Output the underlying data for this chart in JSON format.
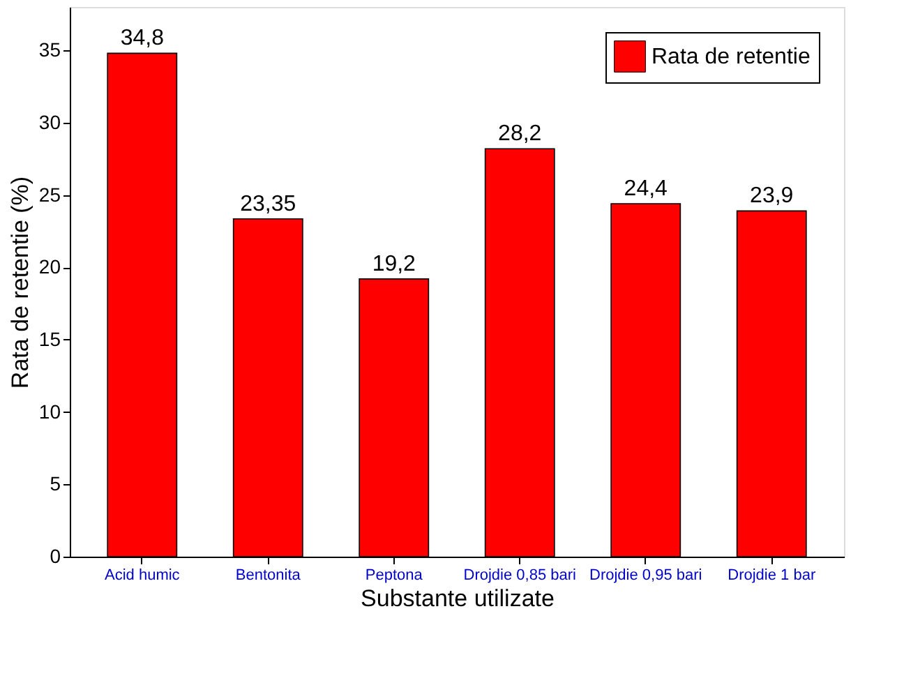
{
  "chart_data": {
    "type": "bar",
    "categories": [
      "Acid humic",
      "Bentonita",
      "Peptona",
      "Drojdie 0,85 bari",
      "Drojdie 0,95 bari",
      "Drojdie 1 bar"
    ],
    "series": [
      {
        "name": "Rata de retentie",
        "color": "#ff0000",
        "values": [
          34.8,
          23.35,
          19.2,
          28.2,
          24.4,
          23.9
        ],
        "value_labels": [
          "34,8",
          "23,35",
          "19,2",
          "28,2",
          "24,4",
          "23,9"
        ]
      }
    ],
    "xlabel": "Substante utilizate",
    "ylabel": "Rata de retentie (%)",
    "ylim": [
      0,
      38
    ],
    "yticks": [
      0,
      5,
      10,
      15,
      20,
      25,
      30,
      35
    ],
    "grid": false,
    "legend": "top right"
  }
}
